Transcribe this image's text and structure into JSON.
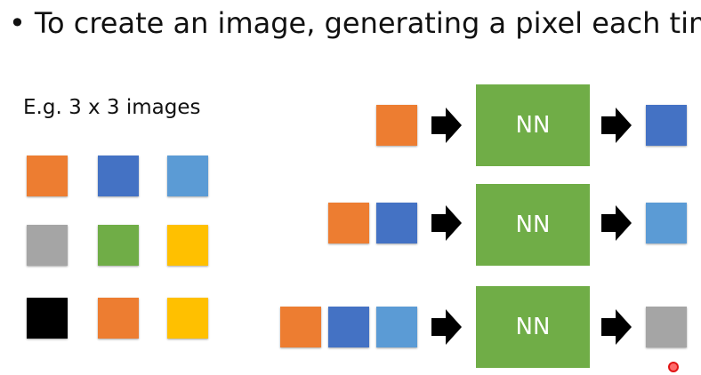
{
  "slide": {
    "bullet_symbol": "•",
    "bullet_text": "To create an image, generating a pixel each time",
    "example_label": "E.g. 3 x 3 images"
  },
  "colors": {
    "orange": "#ed7d31",
    "blue": "#4472c4",
    "light_blue": "#5b9bd5",
    "gray": "#a5a5a5",
    "green": "#70ad47",
    "yellow": "#ffc000",
    "black": "#000000"
  },
  "grid_image": {
    "rows": [
      [
        "orange",
        "blue",
        "light_blue"
      ],
      [
        "gray",
        "green",
        "yellow"
      ],
      [
        "black",
        "orange",
        "yellow"
      ]
    ]
  },
  "steps": [
    {
      "inputs": [
        "orange"
      ],
      "model_label": "NN",
      "output": "blue"
    },
    {
      "inputs": [
        "orange",
        "blue"
      ],
      "model_label": "NN",
      "output": "light_blue"
    },
    {
      "inputs": [
        "orange",
        "blue",
        "light_blue"
      ],
      "model_label": "NN",
      "output": "gray"
    }
  ],
  "icons": {
    "arrow": "right-arrow-icon",
    "pointer": "cursor-dot-icon"
  }
}
